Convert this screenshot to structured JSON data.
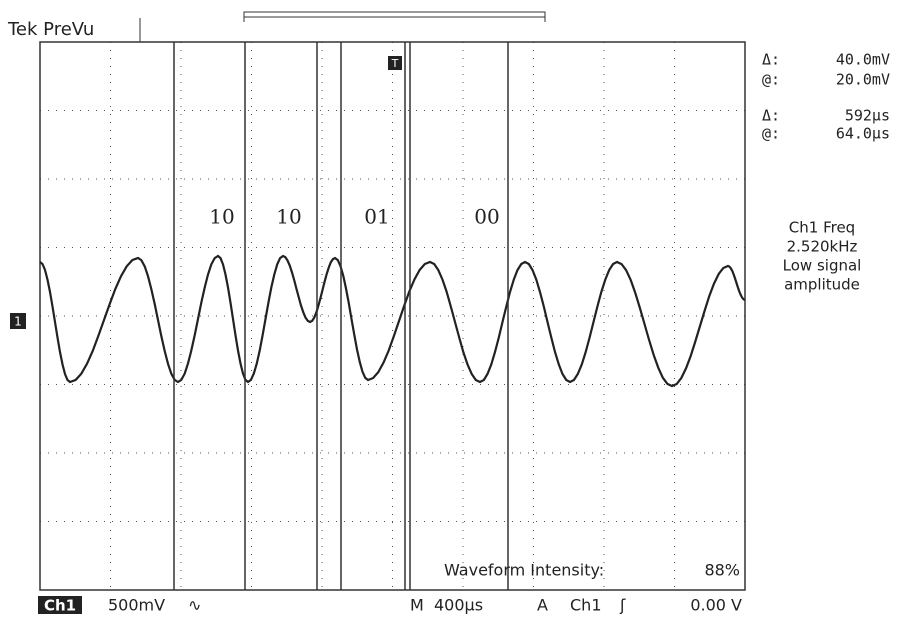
{
  "header": {
    "title": "Tek PreVu"
  },
  "readouts": [
    {
      "symbol": "Δ:",
      "value": "40.0mV"
    },
    {
      "symbol": "@:",
      "value": "20.0mV"
    },
    {
      "symbol": "Δ:",
      "value": "592µs"
    },
    {
      "symbol": "@:",
      "value": "64.0µs"
    }
  ],
  "measurement": {
    "lines": [
      "Ch1 Freq",
      "2.520kHz",
      "Low signal",
      "amplitude"
    ]
  },
  "bit_labels": [
    "10",
    "10",
    "01",
    "00"
  ],
  "markers": {
    "channel": "1",
    "trigger": "T"
  },
  "footer": {
    "intensity_label": "Waveform Intensity:",
    "intensity_value": "88%",
    "channel": "Ch1",
    "scale": "500mV",
    "coupling": "∿",
    "timebase_prefix": "M",
    "timebase": "400µs",
    "trigger_prefix": "A",
    "trigger_source": "Ch1",
    "trigger_slope": "ʃ",
    "trigger_level": "0.00 V"
  }
}
